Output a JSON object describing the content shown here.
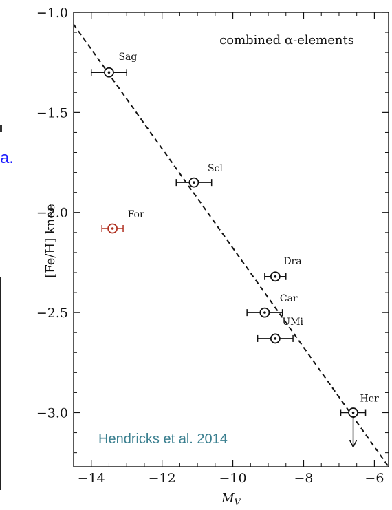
{
  "edge_fragment": {
    "text": "a.",
    "color": "#1a1aff"
  },
  "credit": {
    "text": "Hendricks et al. 2014",
    "color": "#3a7f8f"
  },
  "chart_data": {
    "type": "scatter",
    "title": "",
    "legend_text": "combined α-elements",
    "xlabel": "M_V",
    "xlabel_main": "M",
    "xlabel_sub": "V",
    "ylabel": "[Fe/H] knee",
    "xlim": [
      -14.5,
      -5.6
    ],
    "ylim": [
      -3.27,
      -1.0
    ],
    "x_ticks": [
      -14,
      -12,
      -10,
      -8,
      -6
    ],
    "x_tick_labels": [
      "−14",
      "−12",
      "−10",
      "−8",
      "−6"
    ],
    "y_ticks": [
      -1.0,
      -1.5,
      -2.0,
      -2.5,
      -3.0
    ],
    "y_tick_labels": [
      "−1.0",
      "−1.5",
      "−2.0",
      "−2.5",
      "−3.0"
    ],
    "grid": false,
    "points": [
      {
        "name": "Sag",
        "x": -13.5,
        "y": -1.3,
        "xerr": 0.5,
        "color": "#111111"
      },
      {
        "name": "Scl",
        "x": -11.1,
        "y": -1.85,
        "xerr": 0.5,
        "color": "#111111"
      },
      {
        "name": "For",
        "x": -13.4,
        "y": -2.08,
        "xerr": 0.3,
        "color": "#b03020"
      },
      {
        "name": "Dra",
        "x": -8.8,
        "y": -2.32,
        "xerr": 0.3,
        "color": "#111111"
      },
      {
        "name": "Car",
        "x": -9.1,
        "y": -2.5,
        "xerr": 0.5,
        "color": "#111111"
      },
      {
        "name": "UMi",
        "x": -8.8,
        "y": -2.63,
        "xerr": 0.5,
        "color": "#111111"
      },
      {
        "name": "Her",
        "x": -6.6,
        "y": -3.0,
        "xerr": 0.35,
        "color": "#111111",
        "upper_limit": true
      }
    ],
    "fit_line": {
      "x": [
        -14.5,
        -5.6
      ],
      "y": [
        -1.06,
        -3.27
      ]
    }
  }
}
